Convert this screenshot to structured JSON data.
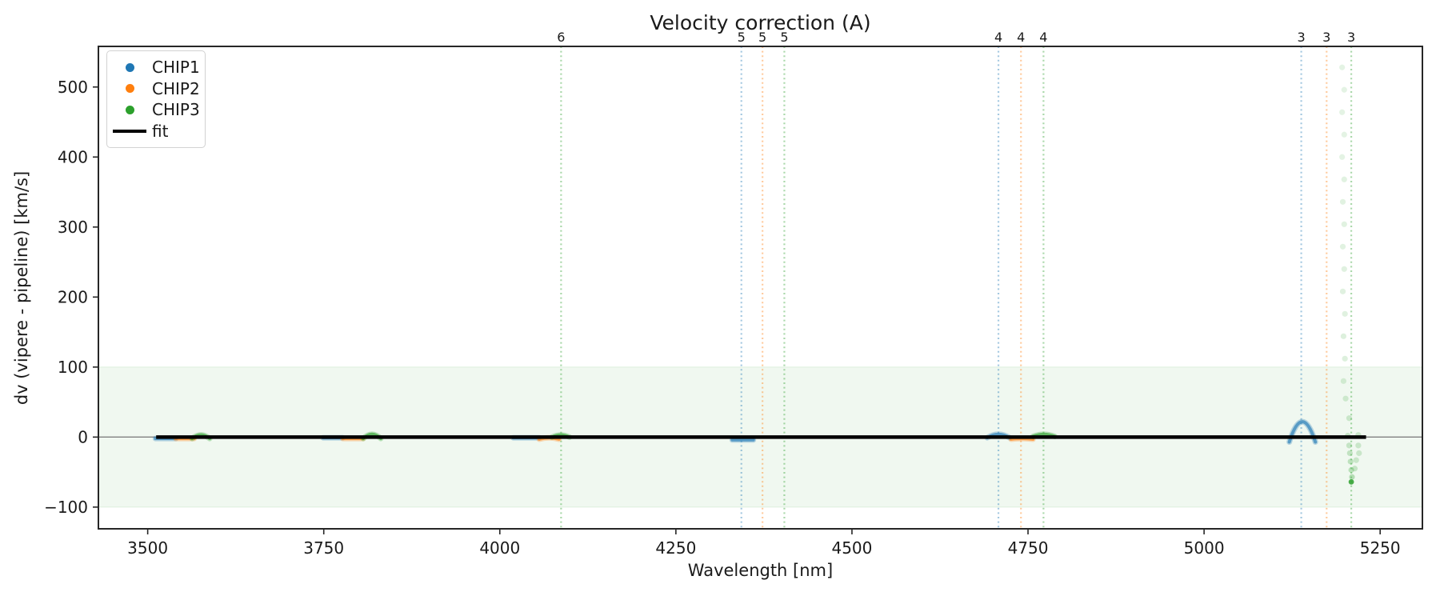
{
  "chart_data": {
    "type": "scatter",
    "title": "Velocity correction (A)",
    "xlabel": "Wavelength [nm]",
    "ylabel": "dv (vipere - pipeline) [km/s]",
    "xlim": [
      3430,
      5310
    ],
    "ylim": [
      -131,
      558
    ],
    "xticks": [
      3500,
      3750,
      4000,
      4250,
      4500,
      4750,
      5000,
      5250
    ],
    "yticks": [
      -100,
      0,
      100,
      200,
      300,
      400,
      500
    ],
    "grid": false,
    "colors": {
      "CHIP1": "#1f77b4",
      "CHIP2": "#ff7f0e",
      "CHIP3": "#2ca02c",
      "fit": "#000000",
      "band_fill": "rgba(44,160,44,0.07)",
      "band_edge": "rgba(44,160,44,0.13)",
      "zero_line": "#808080",
      "spine": "#262626",
      "text": "#1a1a1a"
    },
    "shaded_band": {
      "ymin": -100,
      "ymax": 100
    },
    "zero_line_y": 0,
    "fit_line": {
      "label": "fit",
      "x_start": 3512,
      "x_end": 5230,
      "y": 0
    },
    "order_markers": [
      {
        "text": "6",
        "x": 4087,
        "chip": "CHIP3"
      },
      {
        "text": "5",
        "x": 4343,
        "chip": "CHIP1"
      },
      {
        "text": "5",
        "x": 4373,
        "chip": "CHIP2"
      },
      {
        "text": "5",
        "x": 4404,
        "chip": "CHIP3"
      },
      {
        "text": "4",
        "x": 4708,
        "chip": "CHIP1"
      },
      {
        "text": "4",
        "x": 4740,
        "chip": "CHIP2"
      },
      {
        "text": "4",
        "x": 4772,
        "chip": "CHIP3"
      },
      {
        "text": "3",
        "x": 5138,
        "chip": "CHIP1"
      },
      {
        "text": "3",
        "x": 5174,
        "chip": "CHIP2"
      },
      {
        "text": "3",
        "x": 5209,
        "chip": "CHIP3"
      }
    ],
    "series": [
      {
        "name": "CHIP1",
        "segments": [
          {
            "x0": 3511,
            "x1": 3540,
            "dv_ends": -2,
            "dv_peak": -2
          },
          {
            "x0": 3749,
            "x1": 3777,
            "dv_ends": -1,
            "dv_peak": -1
          },
          {
            "x0": 4019,
            "x1": 4056,
            "dv_ends": -1,
            "dv_peak": -1
          },
          {
            "x0": 4330,
            "x1": 4360,
            "dv_ends": -4,
            "dv_peak": -4
          },
          {
            "x0": 4692,
            "x1": 4724,
            "dv_ends": -1,
            "dv_peak": 4
          },
          {
            "x0": 5121,
            "x1": 5158,
            "dv_ends": -7,
            "dv_peak": 22
          }
        ]
      },
      {
        "name": "CHIP2",
        "segments": [
          {
            "x0": 3540,
            "x1": 3566,
            "dv_ends": -2,
            "dv_peak": -2
          },
          {
            "x0": 3777,
            "x1": 3806,
            "dv_ends": -2,
            "dv_peak": -2
          },
          {
            "x0": 4056,
            "x1": 4084,
            "dv_ends": -3,
            "dv_peak": -1
          },
          {
            "x0": 4726,
            "x1": 4757,
            "dv_ends": -3,
            "dv_peak": -2
          }
        ]
      },
      {
        "name": "CHIP3",
        "segments": [
          {
            "x0": 3563,
            "x1": 3588,
            "dv_ends": -2,
            "dv_peak": 3
          },
          {
            "x0": 3806,
            "x1": 3831,
            "dv_ends": -2,
            "dv_peak": 4
          },
          {
            "x0": 4074,
            "x1": 4099,
            "dv_ends": 0,
            "dv_peak": 3
          },
          {
            "x0": 4757,
            "x1": 4788,
            "dv_ends": 1,
            "dv_peak": 4
          }
        ],
        "trail_points": [
          [
            5196,
            528,
            0.13
          ],
          [
            5199,
            496,
            0.13
          ],
          [
            5196,
            464,
            0.13
          ],
          [
            5199,
            432,
            0.13
          ],
          [
            5196,
            400,
            0.13
          ],
          [
            5199,
            368,
            0.14
          ],
          [
            5197,
            336,
            0.14
          ],
          [
            5199,
            304,
            0.14
          ],
          [
            5197,
            272,
            0.14
          ],
          [
            5199,
            240,
            0.15
          ],
          [
            5197,
            208,
            0.15
          ],
          [
            5200,
            176,
            0.15
          ],
          [
            5198,
            144,
            0.16
          ],
          [
            5200,
            112,
            0.16
          ],
          [
            5198,
            80,
            0.16
          ],
          [
            5201,
            55,
            0.18
          ],
          [
            5206,
            27,
            0.2
          ],
          [
            5204,
            2,
            0.22
          ],
          [
            5219,
            3,
            0.2
          ],
          [
            5206,
            -12,
            0.22
          ],
          [
            5219,
            -12,
            0.2
          ],
          [
            5207,
            -23,
            0.24
          ],
          [
            5220,
            -23,
            0.2
          ],
          [
            5208,
            -35,
            0.26
          ],
          [
            5216,
            -33,
            0.2
          ],
          [
            5209,
            -47,
            0.28
          ],
          [
            5214,
            -45,
            0.22
          ],
          [
            5210,
            -57,
            0.3
          ],
          [
            5209,
            -64,
            0.85
          ]
        ]
      }
    ],
    "legend": {
      "entries": [
        {
          "label": "CHIP1",
          "marker": "dot",
          "color": "#1f77b4"
        },
        {
          "label": "CHIP2",
          "marker": "dot",
          "color": "#ff7f0e"
        },
        {
          "label": "CHIP3",
          "marker": "dot",
          "color": "#2ca02c"
        },
        {
          "label": "fit",
          "marker": "line",
          "color": "#000000"
        }
      ]
    }
  }
}
